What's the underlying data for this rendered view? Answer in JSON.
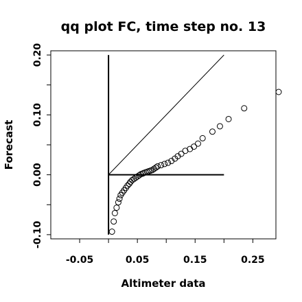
{
  "chart_data": {
    "type": "scatter",
    "title": "qq plot FC, time step no. 13",
    "xlabel": "Altimeter data",
    "ylabel": "Forecast",
    "xlim": [
      -0.1,
      0.29
    ],
    "ylim": [
      -0.107,
      0.207
    ],
    "x_ticks": [
      -0.05,
      0.0,
      0.05,
      0.1,
      0.15,
      0.2,
      0.25
    ],
    "x_tick_labels": [
      "-0.05",
      "",
      "0.05",
      "",
      "0.15",
      "",
      "0.25"
    ],
    "y_ticks": [
      -0.1,
      -0.05,
      0.0,
      0.05,
      0.1,
      0.15,
      0.2
    ],
    "y_tick_labels": [
      "-0.10",
      "",
      "0.00",
      "",
      "0.10",
      "",
      "0.20"
    ],
    "reference_lines": {
      "diagonal": {
        "x": [
          0.0,
          0.2
        ],
        "y": [
          0.0,
          0.2
        ]
      },
      "horizontal": {
        "x": [
          0.0,
          0.2
        ],
        "y": [
          0.0,
          0.0
        ]
      },
      "vertical": {
        "x": [
          0.0,
          0.0
        ],
        "y": [
          -0.1,
          0.2
        ]
      }
    },
    "grid": false,
    "legend": "none",
    "series": [
      {
        "x": [
          0.006,
          0.009,
          0.011,
          0.014,
          0.017,
          0.019,
          0.021,
          0.024,
          0.027,
          0.03,
          0.033,
          0.036,
          0.038,
          0.041,
          0.044,
          0.047,
          0.05,
          0.053,
          0.056,
          0.059,
          0.061,
          0.064,
          0.067,
          0.07,
          0.073,
          0.076,
          0.079,
          0.082,
          0.085,
          0.091,
          0.097,
          0.103,
          0.109,
          0.115,
          0.12,
          0.126,
          0.133,
          0.141,
          0.148,
          0.155,
          0.163,
          0.18,
          0.193,
          0.208,
          0.235
        ],
        "y": [
          -0.095,
          -0.078,
          -0.064,
          -0.055,
          -0.046,
          -0.04,
          -0.034,
          -0.03,
          -0.026,
          -0.022,
          -0.018,
          -0.015,
          -0.012,
          -0.009,
          -0.007,
          -0.005,
          -0.003,
          -0.001,
          0.001,
          0.002,
          0.003,
          0.004,
          0.005,
          0.006,
          0.007,
          0.008,
          0.01,
          0.012,
          0.014,
          0.016,
          0.018,
          0.02,
          0.023,
          0.027,
          0.031,
          0.035,
          0.04,
          0.043,
          0.047,
          0.052,
          0.061,
          0.072,
          0.081,
          0.093,
          0.111
        ]
      }
    ]
  }
}
